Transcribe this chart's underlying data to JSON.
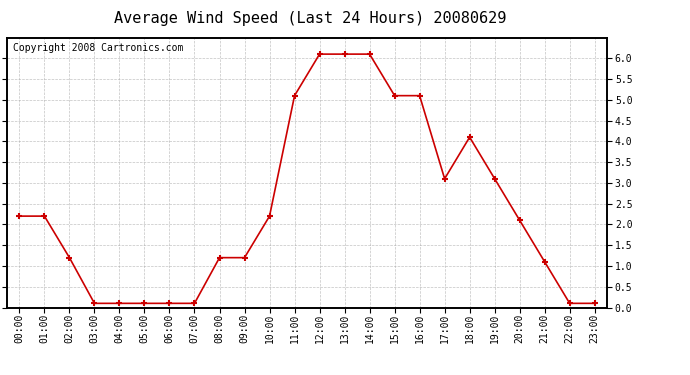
{
  "title": "Average Wind Speed (Last 24 Hours) 20080629",
  "copyright_text": "Copyright 2008 Cartronics.com",
  "hours": [
    "00:00",
    "01:00",
    "02:00",
    "03:00",
    "04:00",
    "05:00",
    "06:00",
    "07:00",
    "08:00",
    "09:00",
    "10:00",
    "11:00",
    "12:00",
    "13:00",
    "14:00",
    "15:00",
    "16:00",
    "17:00",
    "18:00",
    "19:00",
    "20:00",
    "21:00",
    "22:00",
    "23:00"
  ],
  "values": [
    2.2,
    2.2,
    1.2,
    0.1,
    0.1,
    0.1,
    0.1,
    0.1,
    1.2,
    1.2,
    2.2,
    5.1,
    6.1,
    6.1,
    6.1,
    5.1,
    5.1,
    3.1,
    4.1,
    3.1,
    2.1,
    1.1,
    0.1,
    0.1
  ],
  "line_color": "#cc0000",
  "marker_color": "#cc0000",
  "bg_color": "#ffffff",
  "plot_bg_color": "#ffffff",
  "grid_color": "#aaaaaa",
  "ylim": [
    0.0,
    6.5
  ],
  "yticks": [
    0.0,
    0.5,
    1.0,
    1.5,
    2.0,
    2.5,
    3.0,
    3.5,
    4.0,
    4.5,
    5.0,
    5.5,
    6.0
  ],
  "title_fontsize": 11,
  "copyright_fontsize": 7,
  "tick_fontsize": 7,
  "border_color": "#000000"
}
